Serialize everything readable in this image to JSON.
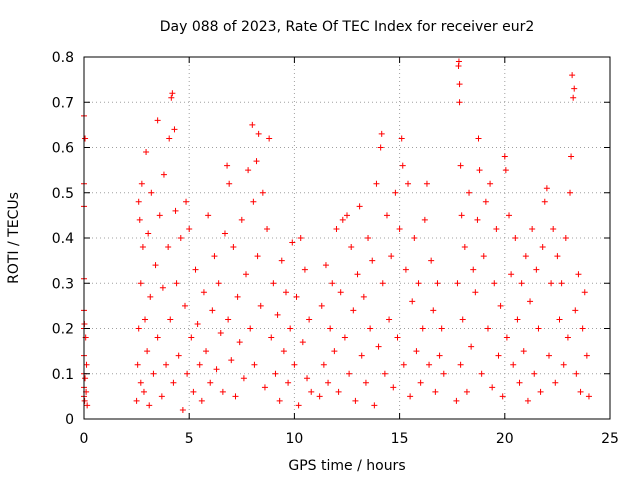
{
  "chart_data": {
    "type": "scatter",
    "title": "Day 088 of 2023, Rate Of TEC Index for receiver eur2",
    "xlabel": "GPS time / hours",
    "ylabel": "ROTI / TECUs",
    "xlim": [
      0,
      25
    ],
    "ylim": [
      0,
      0.8
    ],
    "x_ticks": [
      0,
      5,
      10,
      15,
      20,
      25
    ],
    "x_tick_labels": [
      "0",
      "5",
      "10",
      "15",
      "20",
      "25"
    ],
    "y_ticks": [
      0,
      0.1,
      0.2,
      0.3,
      0.4,
      0.5,
      0.6,
      0.7,
      0.8
    ],
    "y_tick_labels": [
      "0",
      "0.1",
      "0.2",
      "0.3",
      "0.4",
      "0.5",
      "0.6",
      "0.7",
      "0.8"
    ],
    "grid": true,
    "marker": "plus",
    "color": "#ff0000",
    "series": [
      {
        "points": [
          [
            0.0,
            0.67
          ],
          [
            0.0,
            0.52
          ],
          [
            0.0,
            0.47
          ],
          [
            0.0,
            0.31
          ],
          [
            0.0,
            0.24
          ],
          [
            0.0,
            0.2
          ],
          [
            0.0,
            0.14
          ],
          [
            0.0,
            0.1
          ],
          [
            0.0,
            0.07
          ],
          [
            0.0,
            0.05
          ],
          [
            0.02,
            0.21
          ],
          [
            0.03,
            0.04
          ],
          [
            0.05,
            0.62
          ],
          [
            0.05,
            0.09
          ],
          [
            0.08,
            0.18
          ],
          [
            0.1,
            0.06
          ],
          [
            0.12,
            0.12
          ],
          [
            0.15,
            0.03
          ],
          [
            2.5,
            0.04
          ],
          [
            2.55,
            0.12
          ],
          [
            2.6,
            0.48
          ],
          [
            2.6,
            0.2
          ],
          [
            2.65,
            0.44
          ],
          [
            2.7,
            0.3
          ],
          [
            2.7,
            0.08
          ],
          [
            2.75,
            0.52
          ],
          [
            2.8,
            0.38
          ],
          [
            2.85,
            0.06
          ],
          [
            2.9,
            0.22
          ],
          [
            2.95,
            0.59
          ],
          [
            3.0,
            0.15
          ],
          [
            3.05,
            0.41
          ],
          [
            3.1,
            0.03
          ],
          [
            3.15,
            0.27
          ],
          [
            3.2,
            0.5
          ],
          [
            3.3,
            0.1
          ],
          [
            3.4,
            0.34
          ],
          [
            3.5,
            0.66
          ],
          [
            3.5,
            0.18
          ],
          [
            3.6,
            0.45
          ],
          [
            3.7,
            0.05
          ],
          [
            3.75,
            0.29
          ],
          [
            3.8,
            0.54
          ],
          [
            3.9,
            0.12
          ],
          [
            4.0,
            0.38
          ],
          [
            4.05,
            0.62
          ],
          [
            4.1,
            0.22
          ],
          [
            4.15,
            0.71
          ],
          [
            4.2,
            0.72
          ],
          [
            4.25,
            0.08
          ],
          [
            4.3,
            0.64
          ],
          [
            4.35,
            0.46
          ],
          [
            4.4,
            0.3
          ],
          [
            4.5,
            0.14
          ],
          [
            4.6,
            0.4
          ],
          [
            4.7,
            0.02
          ],
          [
            4.8,
            0.25
          ],
          [
            4.85,
            0.48
          ],
          [
            4.9,
            0.1
          ],
          [
            5.0,
            0.42
          ],
          [
            5.1,
            0.18
          ],
          [
            5.2,
            0.06
          ],
          [
            5.3,
            0.33
          ],
          [
            5.4,
            0.21
          ],
          [
            5.5,
            0.12
          ],
          [
            5.6,
            0.04
          ],
          [
            5.7,
            0.28
          ],
          [
            5.8,
            0.15
          ],
          [
            5.9,
            0.45
          ],
          [
            6.0,
            0.08
          ],
          [
            6.1,
            0.24
          ],
          [
            6.2,
            0.36
          ],
          [
            6.3,
            0.11
          ],
          [
            6.4,
            0.3
          ],
          [
            6.5,
            0.19
          ],
          [
            6.6,
            0.06
          ],
          [
            6.7,
            0.41
          ],
          [
            6.8,
            0.56
          ],
          [
            6.85,
            0.22
          ],
          [
            6.9,
            0.52
          ],
          [
            7.0,
            0.13
          ],
          [
            7.1,
            0.38
          ],
          [
            7.2,
            0.05
          ],
          [
            7.3,
            0.27
          ],
          [
            7.4,
            0.17
          ],
          [
            7.5,
            0.44
          ],
          [
            7.6,
            0.09
          ],
          [
            7.7,
            0.32
          ],
          [
            7.8,
            0.55
          ],
          [
            7.9,
            0.2
          ],
          [
            8.0,
            0.65
          ],
          [
            8.05,
            0.48
          ],
          [
            8.1,
            0.12
          ],
          [
            8.2,
            0.57
          ],
          [
            8.25,
            0.36
          ],
          [
            8.3,
            0.63
          ],
          [
            8.4,
            0.25
          ],
          [
            8.5,
            0.5
          ],
          [
            8.6,
            0.07
          ],
          [
            8.7,
            0.42
          ],
          [
            8.8,
            0.62
          ],
          [
            8.9,
            0.18
          ],
          [
            9.0,
            0.3
          ],
          [
            9.1,
            0.1
          ],
          [
            9.2,
            0.23
          ],
          [
            9.3,
            0.04
          ],
          [
            9.4,
            0.35
          ],
          [
            9.5,
            0.15
          ],
          [
            9.6,
            0.28
          ],
          [
            9.7,
            0.08
          ],
          [
            9.8,
            0.2
          ],
          [
            9.9,
            0.39
          ],
          [
            10.0,
            0.12
          ],
          [
            10.1,
            0.27
          ],
          [
            10.2,
            0.03
          ],
          [
            10.3,
            0.4
          ],
          [
            10.4,
            0.17
          ],
          [
            10.5,
            0.33
          ],
          [
            10.6,
            0.09
          ],
          [
            10.7,
            0.22
          ],
          [
            10.8,
            0.06
          ],
          [
            11.2,
            0.05
          ],
          [
            11.3,
            0.25
          ],
          [
            11.4,
            0.12
          ],
          [
            11.5,
            0.34
          ],
          [
            11.6,
            0.08
          ],
          [
            11.7,
            0.2
          ],
          [
            11.8,
            0.3
          ],
          [
            11.9,
            0.15
          ],
          [
            12.0,
            0.42
          ],
          [
            12.1,
            0.06
          ],
          [
            12.2,
            0.28
          ],
          [
            12.3,
            0.44
          ],
          [
            12.4,
            0.18
          ],
          [
            12.5,
            0.45
          ],
          [
            12.6,
            0.1
          ],
          [
            12.7,
            0.38
          ],
          [
            12.8,
            0.24
          ],
          [
            12.9,
            0.04
          ],
          [
            13.0,
            0.32
          ],
          [
            13.1,
            0.47
          ],
          [
            13.2,
            0.14
          ],
          [
            13.3,
            0.27
          ],
          [
            13.4,
            0.08
          ],
          [
            13.5,
            0.4
          ],
          [
            13.6,
            0.2
          ],
          [
            13.7,
            0.35
          ],
          [
            13.8,
            0.03
          ],
          [
            13.9,
            0.52
          ],
          [
            14.0,
            0.16
          ],
          [
            14.1,
            0.6
          ],
          [
            14.15,
            0.63
          ],
          [
            14.2,
            0.3
          ],
          [
            14.3,
            0.1
          ],
          [
            14.4,
            0.45
          ],
          [
            14.5,
            0.22
          ],
          [
            14.6,
            0.36
          ],
          [
            14.7,
            0.07
          ],
          [
            14.8,
            0.5
          ],
          [
            14.9,
            0.18
          ],
          [
            15.0,
            0.42
          ],
          [
            15.1,
            0.62
          ],
          [
            15.15,
            0.56
          ],
          [
            15.2,
            0.12
          ],
          [
            15.3,
            0.33
          ],
          [
            15.4,
            0.52
          ],
          [
            15.5,
            0.05
          ],
          [
            15.6,
            0.26
          ],
          [
            15.7,
            0.4
          ],
          [
            15.8,
            0.15
          ],
          [
            15.9,
            0.3
          ],
          [
            16.0,
            0.08
          ],
          [
            16.1,
            0.2
          ],
          [
            16.2,
            0.44
          ],
          [
            16.3,
            0.52
          ],
          [
            16.4,
            0.12
          ],
          [
            16.5,
            0.35
          ],
          [
            16.6,
            0.24
          ],
          [
            16.7,
            0.06
          ],
          [
            16.8,
            0.3
          ],
          [
            16.9,
            0.14
          ],
          [
            17.0,
            0.2
          ],
          [
            17.1,
            0.1
          ],
          [
            17.7,
            0.04
          ],
          [
            17.75,
            0.3
          ],
          [
            17.8,
            0.78
          ],
          [
            17.82,
            0.79
          ],
          [
            17.85,
            0.7
          ],
          [
            17.85,
            0.74
          ],
          [
            17.9,
            0.56
          ],
          [
            17.9,
            0.12
          ],
          [
            17.95,
            0.45
          ],
          [
            18.0,
            0.22
          ],
          [
            18.1,
            0.38
          ],
          [
            18.2,
            0.06
          ],
          [
            18.3,
            0.5
          ],
          [
            18.4,
            0.16
          ],
          [
            18.5,
            0.33
          ],
          [
            18.6,
            0.28
          ],
          [
            18.7,
            0.44
          ],
          [
            18.75,
            0.62
          ],
          [
            18.8,
            0.55
          ],
          [
            18.9,
            0.1
          ],
          [
            19.0,
            0.36
          ],
          [
            19.1,
            0.48
          ],
          [
            19.2,
            0.2
          ],
          [
            19.3,
            0.52
          ],
          [
            19.4,
            0.07
          ],
          [
            19.5,
            0.3
          ],
          [
            19.6,
            0.42
          ],
          [
            19.7,
            0.14
          ],
          [
            19.8,
            0.25
          ],
          [
            19.9,
            0.05
          ],
          [
            20.0,
            0.58
          ],
          [
            20.05,
            0.55
          ],
          [
            20.1,
            0.18
          ],
          [
            20.2,
            0.45
          ],
          [
            20.3,
            0.32
          ],
          [
            20.4,
            0.12
          ],
          [
            20.5,
            0.4
          ],
          [
            20.6,
            0.22
          ],
          [
            20.7,
            0.08
          ],
          [
            20.8,
            0.3
          ],
          [
            20.9,
            0.15
          ],
          [
            21.0,
            0.36
          ],
          [
            21.1,
            0.04
          ],
          [
            21.2,
            0.26
          ],
          [
            21.3,
            0.42
          ],
          [
            21.4,
            0.1
          ],
          [
            21.5,
            0.33
          ],
          [
            21.6,
            0.2
          ],
          [
            21.7,
            0.06
          ],
          [
            21.8,
            0.38
          ],
          [
            21.9,
            0.48
          ],
          [
            22.0,
            0.51
          ],
          [
            22.1,
            0.14
          ],
          [
            22.2,
            0.3
          ],
          [
            22.3,
            0.42
          ],
          [
            22.4,
            0.08
          ],
          [
            22.5,
            0.36
          ],
          [
            22.6,
            0.22
          ],
          [
            22.7,
            0.3
          ],
          [
            22.8,
            0.12
          ],
          [
            22.9,
            0.4
          ],
          [
            23.0,
            0.18
          ],
          [
            23.1,
            0.5
          ],
          [
            23.15,
            0.58
          ],
          [
            23.2,
            0.76
          ],
          [
            23.25,
            0.71
          ],
          [
            23.3,
            0.73
          ],
          [
            23.35,
            0.24
          ],
          [
            23.4,
            0.1
          ],
          [
            23.5,
            0.32
          ],
          [
            23.6,
            0.06
          ],
          [
            23.7,
            0.2
          ],
          [
            23.8,
            0.28
          ],
          [
            23.9,
            0.14
          ],
          [
            24.0,
            0.05
          ]
        ]
      }
    ]
  }
}
